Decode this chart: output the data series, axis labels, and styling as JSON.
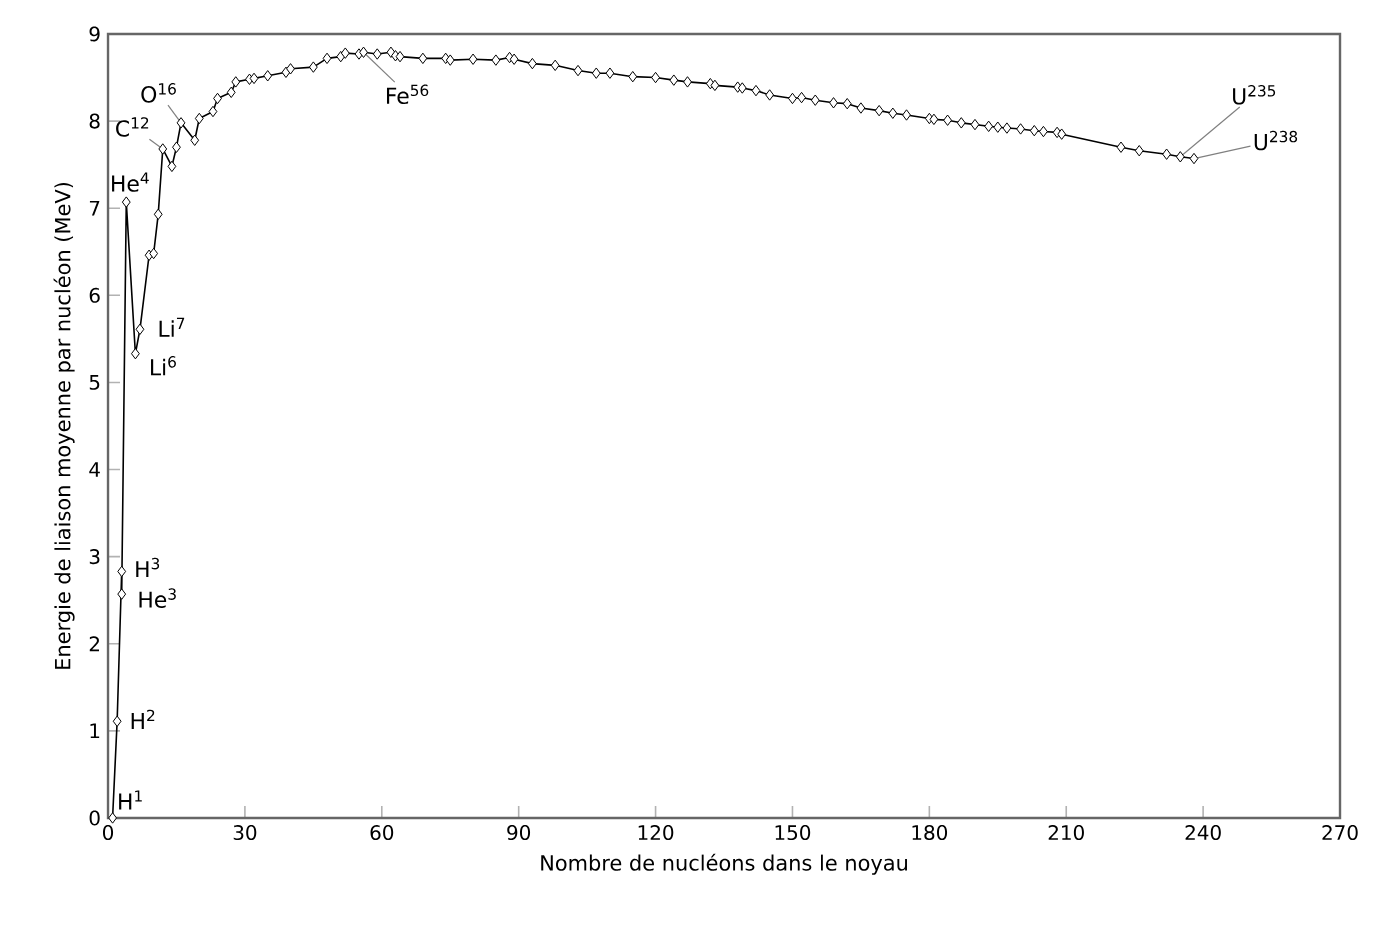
{
  "chart_data": {
    "type": "line",
    "xlabel": "Nombre de nucléons dans le noyau",
    "ylabel": "Energie de liaison moyenne par nucléon (MeV)",
    "xlim": [
      0,
      270
    ],
    "xticks": [
      0,
      30,
      60,
      90,
      120,
      150,
      180,
      210,
      240,
      270
    ],
    "ylim": [
      0,
      9
    ],
    "yticks": [
      0,
      1,
      2,
      3,
      4,
      5,
      6,
      7,
      8,
      9
    ],
    "marker": "diamond",
    "line_style": "solid",
    "series": [
      {
        "color": "#000000",
        "x": [
          1,
          2,
          3,
          3,
          4,
          6,
          7,
          9,
          10,
          11,
          12,
          14,
          15,
          16,
          19,
          20,
          23,
          24,
          27,
          28,
          31,
          32,
          35,
          39,
          40,
          45,
          48,
          51,
          52,
          55,
          56,
          59,
          62,
          63,
          64,
          69,
          74,
          75,
          80,
          85,
          88,
          89,
          93,
          98,
          103,
          107,
          110,
          115,
          120,
          124,
          127,
          132,
          133,
          138,
          139,
          142,
          145,
          150,
          152,
          155,
          159,
          162,
          165,
          169,
          172,
          175,
          180,
          181,
          184,
          187,
          190,
          193,
          195,
          197,
          200,
          203,
          205,
          208,
          209,
          222,
          226,
          232,
          235,
          238
        ],
        "values": [
          0,
          1.11,
          2.83,
          2.57,
          7.07,
          5.33,
          5.61,
          6.46,
          6.48,
          6.93,
          7.68,
          7.48,
          7.7,
          7.98,
          7.78,
          8.03,
          8.11,
          8.26,
          8.33,
          8.45,
          8.48,
          8.49,
          8.52,
          8.56,
          8.6,
          8.62,
          8.72,
          8.74,
          8.78,
          8.77,
          8.79,
          8.77,
          8.79,
          8.75,
          8.74,
          8.72,
          8.72,
          8.7,
          8.71,
          8.7,
          8.73,
          8.71,
          8.66,
          8.64,
          8.58,
          8.55,
          8.55,
          8.51,
          8.5,
          8.47,
          8.45,
          8.43,
          8.41,
          8.39,
          8.38,
          8.35,
          8.3,
          8.26,
          8.27,
          8.24,
          8.21,
          8.2,
          8.15,
          8.12,
          8.09,
          8.07,
          8.03,
          8.02,
          8.01,
          7.98,
          7.96,
          7.94,
          7.93,
          7.92,
          7.91,
          7.89,
          7.88,
          7.87,
          7.85,
          7.7,
          7.66,
          7.62,
          7.59,
          7.57
        ]
      }
    ],
    "annotations": [
      {
        "text": "H$^{1}$",
        "x": 1,
        "y": 0
      },
      {
        "text": "H$^{2}$",
        "x": 2,
        "y": 1.11
      },
      {
        "text": "H$^{3}$",
        "x": 3,
        "y": 2.83
      },
      {
        "text": "He$^{3}$",
        "x": 3,
        "y": 2.57
      },
      {
        "text": "He$^{4}$",
        "x": 4,
        "y": 7.07
      },
      {
        "text": "Li$^{7}$",
        "x": 7,
        "y": 5.61
      },
      {
        "text": "Li$^{6}$",
        "x": 6,
        "y": 5.33
      },
      {
        "text": "C$^{12}$",
        "x": 12,
        "y": 7.68
      },
      {
        "text": "O$^{16}$",
        "x": 16,
        "y": 7.98
      },
      {
        "text": "Fe$^{56}$",
        "x": 56,
        "y": 8.79
      },
      {
        "text": "U$^{235}$",
        "x": 235,
        "y": 7.59
      },
      {
        "text": "U$^{238}$",
        "x": 238,
        "y": 7.57
      }
    ]
  }
}
